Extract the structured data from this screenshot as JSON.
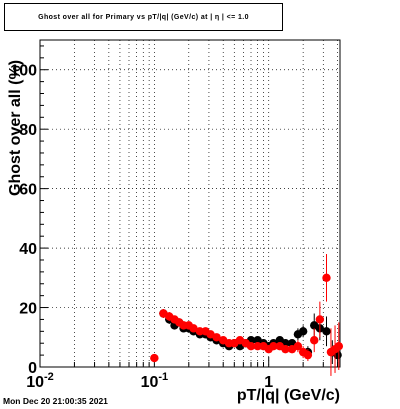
{
  "chart_data": {
    "type": "scatter",
    "title": "Ghost over all for Primary vs pT/|q| (GeV/c) at |  η  | <= 1.0",
    "xlabel": "pT/|q| (GeV/c)",
    "ylabel": "Ghost  over all (%)",
    "x_scale": "log",
    "xlim": [
      0.01,
      4.2
    ],
    "ylim": [
      0,
      110
    ],
    "x_tick_labels": [
      "10^-2",
      "10^-1",
      "1"
    ],
    "y_tick_labels": [
      "0",
      "20",
      "40",
      "60",
      "80",
      "100"
    ],
    "grid": true,
    "series": [
      {
        "color": "#000000",
        "x": [
          0.12,
          0.135,
          0.15,
          0.165,
          0.18,
          0.2,
          0.22,
          0.25,
          0.28,
          0.31,
          0.35,
          0.4,
          0.45,
          0.5,
          0.56,
          0.63,
          0.7,
          0.8,
          0.9,
          1.0,
          1.1,
          1.25,
          1.4,
          1.6,
          1.8,
          2.0,
          2.2,
          2.5,
          2.8,
          3.2,
          3.6,
          4.0
        ],
        "y": [
          18,
          16,
          14,
          15,
          13,
          13,
          12,
          11,
          11,
          10,
          9,
          8,
          7,
          8,
          7,
          8,
          9,
          9,
          8,
          7,
          8,
          9,
          8,
          8,
          11,
          12,
          5,
          14,
          13,
          12,
          5,
          4
        ],
        "err": [
          1.5,
          1.5,
          1.2,
          1.2,
          1,
          1,
          1,
          1,
          1,
          1,
          1,
          1,
          1,
          1,
          1,
          1,
          1,
          1,
          1,
          1,
          1,
          1,
          1,
          1,
          2,
          2,
          2,
          4,
          4,
          5,
          4,
          4
        ]
      },
      {
        "color": "#ff0000",
        "x": [
          0.1,
          0.12,
          0.135,
          0.15,
          0.165,
          0.18,
          0.2,
          0.22,
          0.25,
          0.28,
          0.31,
          0.35,
          0.4,
          0.45,
          0.5,
          0.56,
          0.63,
          0.7,
          0.8,
          0.9,
          1.0,
          1.1,
          1.25,
          1.4,
          1.6,
          1.8,
          2.0,
          2.2,
          2.5,
          2.8,
          3.2,
          3.5,
          3.8,
          4.1
        ],
        "y": [
          3,
          18,
          17,
          16,
          15,
          14,
          14,
          13,
          12,
          12,
          11,
          10,
          9,
          8,
          8,
          9,
          8,
          7,
          7,
          7,
          6,
          7,
          7,
          6,
          6,
          7,
          5,
          4,
          9,
          16,
          30,
          5,
          6,
          7
        ],
        "err": [
          1,
          1.5,
          1.5,
          1.2,
          1.2,
          1,
          1,
          1,
          1,
          1,
          1,
          1,
          1,
          1,
          1,
          1,
          1,
          1,
          1,
          1,
          1,
          1,
          1,
          1,
          1,
          2,
          2,
          2,
          4,
          6,
          8,
          8,
          8,
          8
        ]
      }
    ],
    "footer": "Mon Dec 20 21:00:35 2021"
  }
}
